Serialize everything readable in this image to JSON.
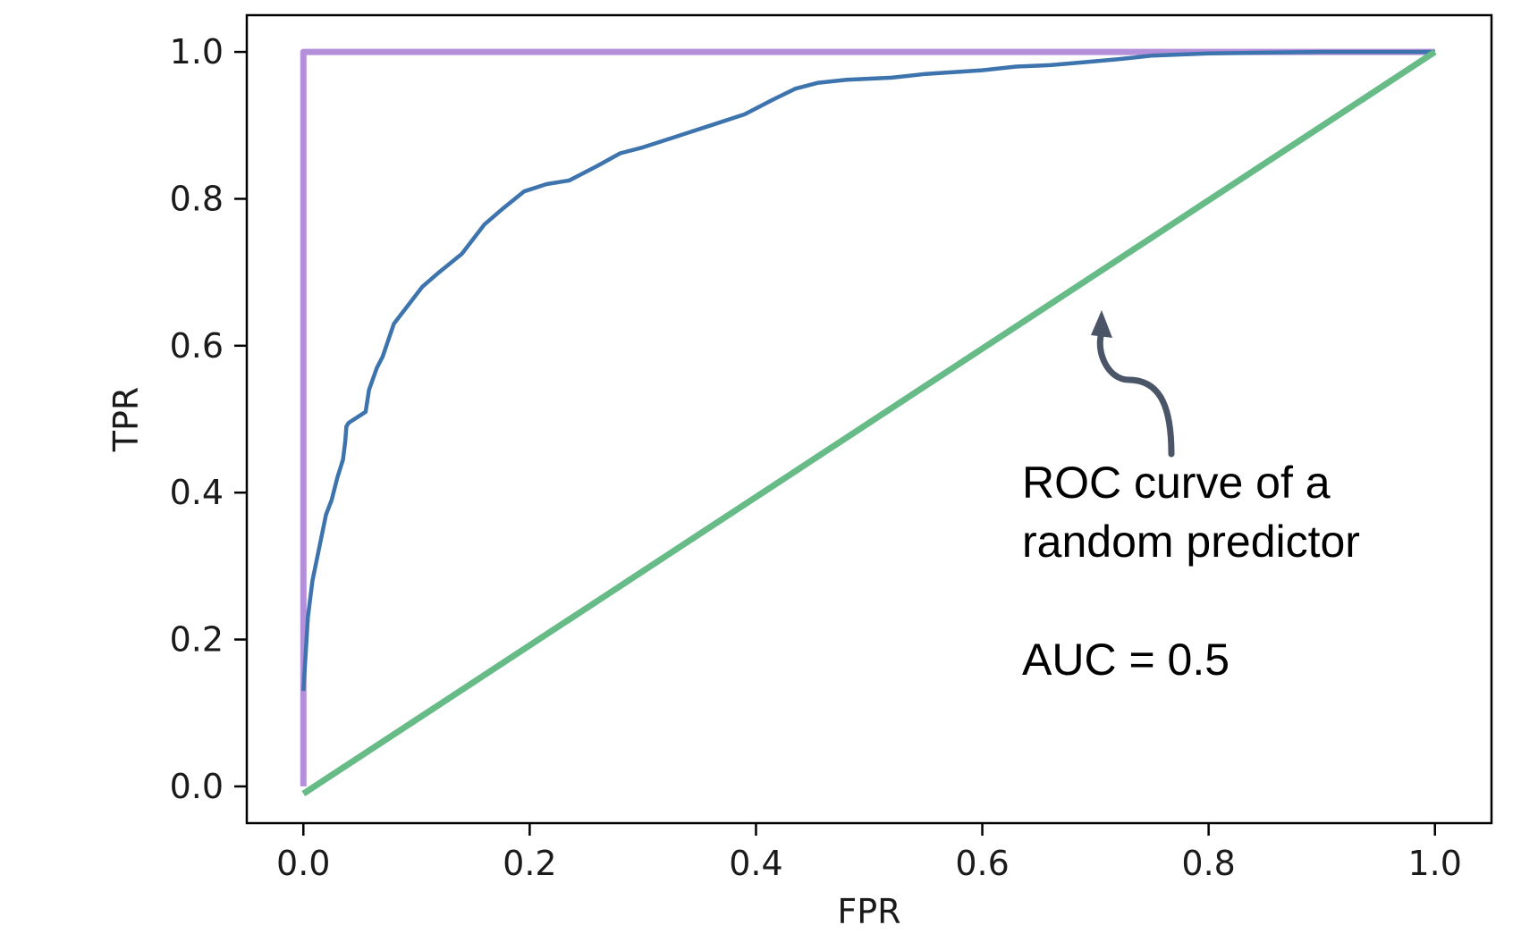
{
  "chart_data": {
    "type": "line",
    "title": "",
    "xlabel": "FPR",
    "ylabel": "TPR",
    "xlim": [
      -0.05,
      1.05
    ],
    "ylim": [
      -0.05,
      1.05
    ],
    "xticks": [
      0.0,
      0.2,
      0.4,
      0.6,
      0.8,
      1.0
    ],
    "xtick_labels": [
      "0.0",
      "0.2",
      "0.4",
      "0.6",
      "0.8",
      "1.0"
    ],
    "yticks": [
      0.0,
      0.2,
      0.4,
      0.6,
      0.8,
      1.0
    ],
    "ytick_labels": [
      "0.0",
      "0.2",
      "0.4",
      "0.6",
      "0.8",
      "1.0"
    ],
    "grid": false,
    "legend": "none",
    "series": [
      {
        "key": "perfect",
        "color": "#b48fda",
        "x": [
          0.0,
          0.0,
          1.0
        ],
        "y": [
          0.0,
          1.0,
          1.0
        ]
      },
      {
        "key": "model",
        "color": "#3d74ad",
        "x": [
          0.0,
          0.004,
          0.008,
          0.012,
          0.02,
          0.025,
          0.03,
          0.035,
          0.037,
          0.038,
          0.04,
          0.055,
          0.058,
          0.065,
          0.07,
          0.08,
          0.09,
          0.105,
          0.12,
          0.14,
          0.16,
          0.175,
          0.195,
          0.215,
          0.235,
          0.26,
          0.28,
          0.3,
          0.33,
          0.36,
          0.39,
          0.415,
          0.435,
          0.455,
          0.48,
          0.52,
          0.55,
          0.6,
          0.63,
          0.66,
          0.69,
          0.72,
          0.75,
          0.8,
          0.85,
          0.9,
          0.95,
          1.0
        ],
        "y": [
          0.13,
          0.23,
          0.28,
          0.31,
          0.37,
          0.39,
          0.42,
          0.445,
          0.47,
          0.49,
          0.495,
          0.51,
          0.54,
          0.57,
          0.585,
          0.63,
          0.65,
          0.68,
          0.7,
          0.725,
          0.765,
          0.785,
          0.81,
          0.82,
          0.825,
          0.845,
          0.862,
          0.87,
          0.885,
          0.9,
          0.915,
          0.935,
          0.95,
          0.958,
          0.962,
          0.965,
          0.97,
          0.975,
          0.98,
          0.982,
          0.986,
          0.99,
          0.995,
          0.998,
          0.999,
          1.0,
          1.0,
          1.0
        ]
      },
      {
        "key": "random",
        "color": "#66bb87",
        "x": [
          0.0,
          1.0
        ],
        "y": [
          -0.01,
          1.0
        ]
      }
    ],
    "annotation": {
      "lines": [
        "ROC curve of a",
        "random predictor",
        "",
        "AUC = 0.5"
      ],
      "arrow_color": "#4a5568"
    }
  }
}
